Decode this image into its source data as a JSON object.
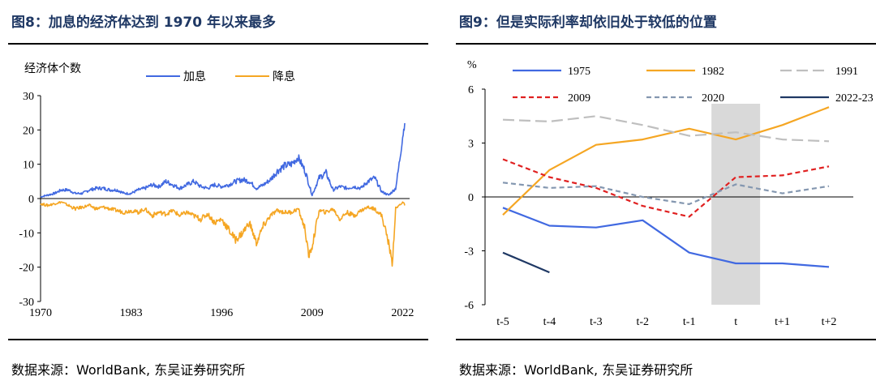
{
  "left": {
    "title": "图8：加息的经济体达到 1970 年以来最多",
    "source": "数据来源：WorldBank, 东吴证券研究所",
    "chart_data": {
      "type": "line",
      "ylabel": "经济体个数",
      "ylim": [
        -30,
        30
      ],
      "yticks": [
        -30,
        -20,
        -10,
        0,
        10,
        20,
        30
      ],
      "xlim": [
        1970,
        2023
      ],
      "xticks": [
        1970,
        1983,
        1996,
        2009,
        2022
      ],
      "legend_position": "top",
      "series": [
        {
          "name": "加息",
          "color": "#4169e1",
          "x": [
            1970,
            1971,
            1972,
            1973,
            1974,
            1975,
            1976,
            1977,
            1978,
            1979,
            1980,
            1981,
            1982,
            1983,
            1984,
            1985,
            1986,
            1987,
            1988,
            1989,
            1990,
            1991,
            1992,
            1993,
            1994,
            1995,
            1996,
            1997,
            1998,
            1999,
            2000,
            2001,
            2002,
            2003,
            2004,
            2005,
            2006,
            2007,
            2008,
            2009,
            2010,
            2011,
            2012,
            2013,
            2014,
            2015,
            2016,
            2017,
            2018,
            2019,
            2020,
            2021,
            2021.5,
            2022,
            2022.3
          ],
          "values": [
            0.5,
            1,
            1.5,
            2.5,
            2.5,
            1.5,
            1.5,
            2.5,
            3,
            3,
            2.5,
            2.5,
            1.5,
            1.5,
            2.5,
            3,
            4,
            3.5,
            5,
            4,
            3,
            4,
            5,
            3.5,
            3,
            4,
            3.5,
            4,
            5,
            5.5,
            5,
            3,
            4,
            5.5,
            8,
            9.5,
            10,
            12,
            8,
            1,
            6,
            7.5,
            2.5,
            3.5,
            3,
            3.5,
            3,
            5,
            6,
            2,
            1,
            3,
            10,
            18,
            22
          ]
        },
        {
          "name": "降息",
          "color": "#f5a623",
          "x": [
            1970,
            1971,
            1972,
            1973,
            1974,
            1975,
            1976,
            1977,
            1978,
            1979,
            1980,
            1981,
            1982,
            1983,
            1984,
            1985,
            1986,
            1987,
            1988,
            1989,
            1990,
            1991,
            1992,
            1993,
            1994,
            1995,
            1996,
            1997,
            1998,
            1999,
            2000,
            2001,
            2002,
            2003,
            2004,
            2005,
            2006,
            2007,
            2008,
            2008.5,
            2009,
            2010,
            2011,
            2012,
            2013,
            2014,
            2015,
            2016,
            2017,
            2018,
            2019,
            2020,
            2020.5,
            2021,
            2022,
            2022.3
          ],
          "values": [
            -1.5,
            -2,
            -1.5,
            -1,
            -2,
            -3,
            -2.5,
            -2,
            -3,
            -2.5,
            -3,
            -3.5,
            -4,
            -3.5,
            -4,
            -3,
            -5,
            -4,
            -4.5,
            -3.5,
            -5,
            -4,
            -5,
            -6,
            -4.5,
            -7,
            -6,
            -9,
            -12,
            -10,
            -7,
            -13,
            -8,
            -5,
            -3.5,
            -4,
            -4,
            -3,
            -9,
            -17,
            -14,
            -3.5,
            -4,
            -3,
            -6,
            -4,
            -5,
            -3.5,
            -2.5,
            -3,
            -5,
            -13,
            -19,
            -3,
            -1,
            -2
          ]
        }
      ]
    }
  },
  "right": {
    "title": "图9：但是实际利率却依旧处于较低的位置",
    "source": "数据来源：WorldBank, 东吴证券研究所",
    "chart_data": {
      "type": "line",
      "ylabel": "%",
      "ylim": [
        -6,
        6
      ],
      "yticks": [
        -6,
        -3,
        0,
        3,
        6
      ],
      "categories": [
        "t-5",
        "t-4",
        "t-3",
        "t-2",
        "t-1",
        "t",
        "t+1",
        "t+2"
      ],
      "shaded_category": "t",
      "legend_position": "top",
      "series": [
        {
          "name": "1975",
          "color": "#4169e1",
          "dash": "solid",
          "values": [
            -0.6,
            -1.6,
            -1.7,
            -1.3,
            -3.1,
            -3.7,
            -3.7,
            -3.9
          ]
        },
        {
          "name": "1982",
          "color": "#f5a623",
          "dash": "solid",
          "values": [
            -1.0,
            1.5,
            2.9,
            3.2,
            3.8,
            3.2,
            4.0,
            5.0
          ]
        },
        {
          "name": "1991",
          "color": "#bfbfbf",
          "dash": "longdash",
          "values": [
            4.3,
            4.2,
            4.5,
            4.0,
            3.4,
            3.6,
            3.2,
            3.1
          ]
        },
        {
          "name": "2009",
          "color": "#e02020",
          "dash": "dash",
          "values": [
            2.1,
            1.1,
            0.5,
            -0.5,
            -1.1,
            1.1,
            1.2,
            1.7
          ]
        },
        {
          "name": "2020",
          "color": "#8497b0",
          "dash": "dash",
          "values": [
            0.8,
            0.5,
            0.6,
            0.0,
            -0.4,
            0.7,
            0.2,
            0.6
          ]
        },
        {
          "name": "2022-23",
          "color": "#1f3864",
          "dash": "solid",
          "values": [
            -3.1,
            -4.2,
            null,
            null,
            null,
            null,
            null,
            null
          ]
        }
      ]
    }
  }
}
